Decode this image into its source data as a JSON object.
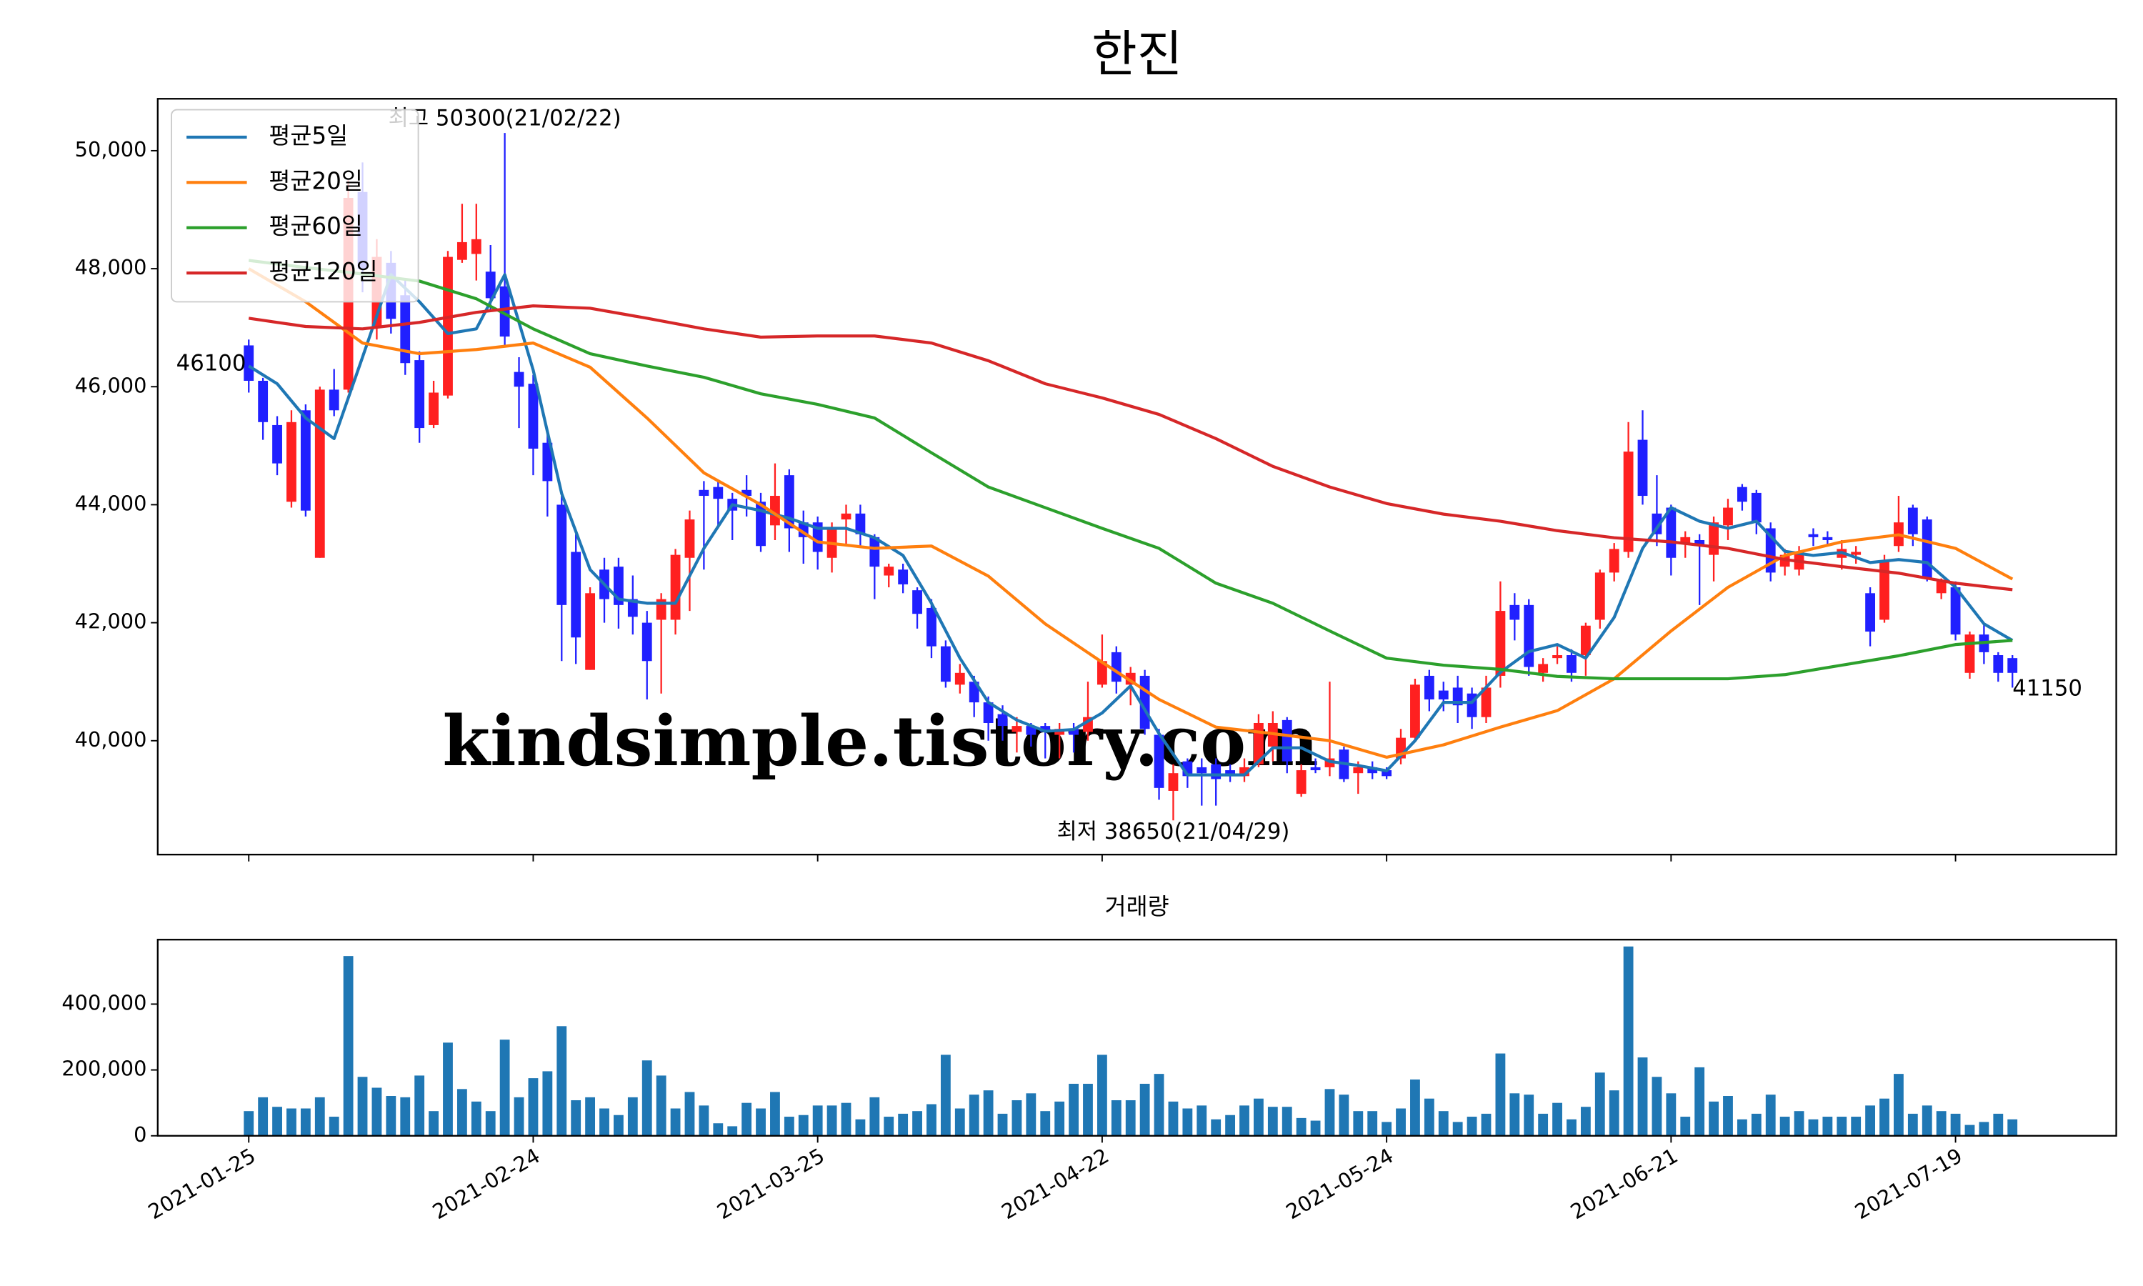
{
  "chart_data": [
    {
      "type": "candlestick",
      "title": "한진",
      "xlim": [
        -6.4,
        131.3
      ],
      "ylim": [
        38070,
        50880
      ],
      "yticks": [
        {
          "value": 40000,
          "label": "40,000"
        },
        {
          "value": 42000,
          "label": "42,000"
        },
        {
          "value": 44000,
          "label": "44,000"
        },
        {
          "value": 46000,
          "label": "46,000"
        },
        {
          "value": 48000,
          "label": "48,000"
        },
        {
          "value": 50000,
          "label": "50,000"
        }
      ],
      "up_color": "#ff2020",
      "down_color": "#2020ff",
      "open": [
        46700,
        46100,
        45350,
        44050,
        45600,
        43100,
        45950,
        45950,
        49300,
        47000,
        48100,
        47550,
        46450,
        45350,
        45850,
        48150,
        48250,
        47950,
        47700,
        46250,
        46050,
        45050,
        44000,
        43200,
        41200,
        42900,
        42950,
        42400,
        42000,
        42050,
        42050,
        43100,
        44250,
        44300,
        44100,
        44250,
        44050,
        43650,
        44500,
        43700,
        43700,
        43100,
        43750,
        43850,
        43450,
        42800,
        42900,
        42550,
        42250,
        41600,
        40950,
        41000,
        40650,
        40450,
        40150,
        40250,
        40250,
        40100,
        40200,
        40150,
        40950,
        41500,
        40950,
        41100,
        40100,
        39150,
        39650,
        39550,
        39600,
        39500,
        39400,
        39600,
        39900,
        40350,
        39100,
        39550,
        39550,
        39850,
        39450,
        39550,
        39500,
        39700,
        40050,
        41100,
        40850,
        40900,
        40800,
        40400,
        41100,
        42300,
        42300,
        41150,
        41400,
        41450,
        41450,
        42050,
        42850,
        43200,
        45100,
        43850,
        43950,
        43350,
        43400,
        43150,
        43650,
        44300,
        44200,
        43600,
        42950,
        42900,
        43500,
        43450,
        43100,
        43150,
        42500,
        42050,
        43300,
        43950,
        43750,
        42500,
        42600,
        41150,
        41800,
        41450,
        41400
      ],
      "high": [
        46800,
        46150,
        45500,
        45600,
        45700,
        46000,
        46300,
        49500,
        49800,
        48500,
        48300,
        47800,
        46600,
        46100,
        48300,
        49100,
        49100,
        48400,
        50300,
        46500,
        46200,
        45200,
        44150,
        43500,
        42600,
        43100,
        43100,
        42800,
        42200,
        42500,
        43250,
        43900,
        44400,
        44400,
        44200,
        44500,
        44200,
        44700,
        44600,
        43900,
        43800,
        43700,
        44000,
        44000,
        43500,
        43000,
        43000,
        42600,
        42400,
        41700,
        41300,
        41100,
        40750,
        40600,
        40400,
        40300,
        40300,
        40300,
        40300,
        41000,
        41800,
        41600,
        41250,
        41200,
        40200,
        39600,
        39700,
        39700,
        39700,
        39600,
        39700,
        40450,
        40500,
        40400,
        39600,
        39700,
        41000,
        39900,
        39650,
        39650,
        39550,
        40200,
        41050,
        41200,
        41000,
        41100,
        40900,
        41100,
        42700,
        42500,
        42400,
        41400,
        41600,
        41550,
        42000,
        42900,
        43350,
        45400,
        45600,
        44500,
        44000,
        43550,
        43500,
        43800,
        44100,
        44350,
        44250,
        43700,
        43250,
        43300,
        43600,
        43550,
        43400,
        43300,
        42600,
        43150,
        44150,
        44000,
        43800,
        42750,
        42700,
        41850,
        42000,
        41500,
        41450
      ],
      "low": [
        45900,
        45100,
        44500,
        43950,
        43800,
        43100,
        45500,
        45900,
        47600,
        46800,
        46900,
        46200,
        45050,
        45300,
        45800,
        48100,
        47800,
        47300,
        46700,
        45300,
        44500,
        43800,
        41350,
        41300,
        41200,
        42000,
        41900,
        41800,
        40700,
        40800,
        41800,
        42200,
        42900,
        43600,
        43400,
        43800,
        43200,
        43400,
        43200,
        43000,
        42900,
        42850,
        43300,
        43300,
        42400,
        42600,
        42500,
        41900,
        41400,
        40900,
        40800,
        40400,
        40000,
        40000,
        39800,
        39900,
        39700,
        39700,
        39800,
        40000,
        40900,
        40800,
        40600,
        40100,
        39000,
        38650,
        39200,
        38900,
        38900,
        39300,
        39300,
        39550,
        39650,
        39450,
        39050,
        39450,
        39400,
        39300,
        39100,
        39350,
        39350,
        39600,
        40000,
        40500,
        40500,
        40300,
        40200,
        40300,
        40900,
        41700,
        41100,
        41000,
        41300,
        41000,
        41100,
        41900,
        42700,
        43100,
        44000,
        43300,
        42800,
        43100,
        42300,
        42700,
        43400,
        43900,
        43500,
        42700,
        42800,
        42800,
        43300,
        43300,
        42900,
        43000,
        41600,
        42000,
        43200,
        43300,
        42700,
        42400,
        41700,
        41050,
        41300,
        41000,
        40900
      ],
      "close": [
        46100,
        45400,
        44700,
        45400,
        43900,
        45950,
        45600,
        49200,
        48000,
        48200,
        47150,
        46400,
        45300,
        45900,
        48200,
        48450,
        48500,
        47500,
        46850,
        46000,
        44950,
        44400,
        42300,
        41750,
        42500,
        42400,
        42300,
        42100,
        41350,
        42400,
        43150,
        43750,
        44150,
        44100,
        43900,
        44150,
        43300,
        44150,
        43600,
        43450,
        43200,
        43600,
        43850,
        43500,
        42950,
        42950,
        42650,
        42150,
        41600,
        41000,
        41150,
        40650,
        40300,
        40250,
        40250,
        40100,
        40150,
        40200,
        40100,
        40400,
        41350,
        41000,
        41150,
        40200,
        39200,
        39450,
        39400,
        39450,
        39350,
        39400,
        39550,
        40300,
        40300,
        39650,
        39500,
        39500,
        39700,
        39350,
        39550,
        39450,
        39400,
        40050,
        40950,
        40700,
        40700,
        40600,
        40400,
        40900,
        42200,
        42050,
        41250,
        41300,
        41450,
        41150,
        41950,
        42850,
        43250,
        44900,
        44150,
        43500,
        43100,
        43450,
        43300,
        43700,
        43950,
        44050,
        43700,
        42850,
        43150,
        43200,
        43450,
        43400,
        43250,
        43200,
        41850,
        43050,
        43700,
        43500,
        42750,
        42700,
        41800,
        41800,
        41500,
        41150,
        41150
      ],
      "lines": [
        {
          "name": "평균5일",
          "color": "#1f77b4",
          "x": [
            0,
            2,
            4,
            6,
            8,
            10,
            12,
            14,
            16,
            18,
            20,
            22,
            24,
            26,
            28,
            30,
            32,
            34,
            36,
            38,
            40,
            42,
            44,
            46,
            48,
            50,
            52,
            54,
            56,
            58,
            60,
            62,
            64,
            66,
            68,
            70,
            72,
            74,
            76,
            78,
            80,
            82,
            84,
            86,
            88,
            90,
            92,
            94,
            96,
            98,
            100,
            102,
            104,
            106,
            108,
            110,
            112,
            114,
            116,
            118,
            120,
            122,
            124
          ],
          "values": [
            46350,
            46050,
            45470,
            45120,
            46500,
            47900,
            47440,
            46900,
            46980,
            47900,
            46280,
            44190,
            42900,
            42400,
            42330,
            42330,
            43260,
            44000,
            43900,
            43770,
            43600,
            43600,
            43440,
            43140,
            42330,
            41400,
            40650,
            40350,
            40160,
            40190,
            40470,
            40930,
            40120,
            39420,
            39420,
            39420,
            39880,
            39880,
            39650,
            39580,
            39490,
            40000,
            40650,
            40650,
            41160,
            41510,
            41630,
            41400,
            42090,
            43260,
            43950,
            43720,
            43600,
            43720,
            43210,
            43140,
            43190,
            43020,
            43070,
            43020,
            42600,
            41980,
            41700
          ]
        },
        {
          "name": "평균20일",
          "color": "#ff7f0e",
          "x": [
            0,
            4,
            8,
            12,
            16,
            20,
            24,
            28,
            32,
            36,
            40,
            44,
            48,
            52,
            56,
            60,
            64,
            68,
            72,
            76,
            80,
            84,
            88,
            92,
            96,
            100,
            104,
            108,
            112,
            116,
            120,
            124
          ],
          "values": [
            48000,
            47440,
            46740,
            46560,
            46630,
            46740,
            46330,
            45470,
            44540,
            44000,
            43370,
            43260,
            43300,
            42790,
            41980,
            41330,
            40700,
            40230,
            40120,
            40000,
            39720,
            39930,
            40230,
            40510,
            41050,
            41860,
            42600,
            43140,
            43370,
            43490,
            43260,
            42740
          ]
        },
        {
          "name": "평균60일",
          "color": "#2ca02c",
          "x": [
            0,
            4,
            8,
            12,
            16,
            20,
            24,
            28,
            32,
            36,
            40,
            44,
            48,
            52,
            56,
            60,
            64,
            68,
            72,
            76,
            80,
            84,
            88,
            92,
            96,
            100,
            104,
            108,
            112,
            116,
            120,
            124
          ],
          "values": [
            48140,
            48020,
            47910,
            47790,
            47490,
            46980,
            46560,
            46350,
            46160,
            45880,
            45700,
            45470,
            44880,
            44300,
            43950,
            43600,
            43260,
            42670,
            42330,
            41860,
            41400,
            41280,
            41210,
            41090,
            41050,
            41050,
            41050,
            41120,
            41280,
            41440,
            41630,
            41700
          ]
        },
        {
          "name": "평균120일",
          "color": "#d62728",
          "x": [
            0,
            4,
            8,
            12,
            16,
            20,
            24,
            28,
            32,
            36,
            40,
            44,
            48,
            52,
            56,
            60,
            64,
            68,
            72,
            76,
            80,
            84,
            88,
            92,
            96,
            100,
            104,
            108,
            112,
            116,
            120,
            124
          ],
          "values": [
            47160,
            47020,
            46980,
            47090,
            47260,
            47370,
            47330,
            47160,
            46980,
            46840,
            46860,
            46860,
            46740,
            46440,
            46050,
            45810,
            45530,
            45120,
            44650,
            44300,
            44020,
            43840,
            43720,
            43560,
            43440,
            43370,
            43260,
            43070,
            42950,
            42840,
            42670,
            42560
          ]
        }
      ],
      "legend": "upper left",
      "annotations": [
        {
          "text": "최고 50300(21/02/22)",
          "x": 18,
          "y": 50300,
          "color": "#ff0000"
        },
        {
          "text": "최저 38650(21/04/29)",
          "x": 65,
          "y": 38650,
          "color": "#0000ff"
        },
        {
          "text": "46100",
          "x": 0,
          "y": 46100,
          "color": "#000000"
        },
        {
          "text": "41150",
          "x": 124,
          "y": 41150,
          "color": "#000000"
        }
      ],
      "watermark": {
        "text": "kindsimple.tistory.com",
        "color": "#e0a0ec"
      }
    },
    {
      "type": "bar",
      "title": "거래량",
      "color": "#1f77b4",
      "xlim": [
        -6.4,
        131.3
      ],
      "ylim": [
        0,
        595800
      ],
      "yticks": [
        0,
        {
          "value": 200000,
          "label": "200,000"
        },
        {
          "value": 400000,
          "label": "400,000"
        }
      ],
      "categories": [
        "2021-01-25",
        null,
        null,
        null,
        null,
        null,
        null,
        null,
        null,
        null,
        null,
        null,
        null,
        null,
        null,
        null,
        null,
        null,
        null,
        null,
        "2021-02-24",
        null,
        null,
        null,
        null,
        null,
        null,
        null,
        null,
        null,
        null,
        null,
        null,
        null,
        null,
        null,
        null,
        null,
        null,
        null,
        "2021-03-25",
        null,
        null,
        null,
        null,
        null,
        null,
        null,
        null,
        null,
        null,
        null,
        null,
        null,
        null,
        null,
        null,
        null,
        null,
        null,
        "2021-04-22",
        null,
        null,
        null,
        null,
        null,
        null,
        null,
        null,
        null,
        null,
        null,
        null,
        null,
        null,
        null,
        null,
        null,
        null,
        null,
        "2021-05-24",
        null,
        null,
        null,
        null,
        null,
        null,
        null,
        null,
        null,
        null,
        null,
        null,
        null,
        null,
        null,
        null,
        null,
        null,
        null,
        "2021-06-21",
        null,
        null,
        null,
        null,
        null,
        null,
        null,
        null,
        null,
        null,
        null,
        null,
        null,
        null,
        null,
        null,
        null,
        null,
        null,
        "2021-07-19",
        null,
        null,
        null,
        null
      ],
      "values": [
        75000,
        117000,
        88000,
        83000,
        83000,
        117000,
        58000,
        546000,
        179000,
        146000,
        121000,
        117000,
        183000,
        75000,
        283000,
        142000,
        104000,
        75000,
        292000,
        117000,
        175000,
        196000,
        333000,
        108000,
        117000,
        83000,
        63000,
        117000,
        229000,
        183000,
        83000,
        133000,
        92000,
        38000,
        29000,
        100000,
        83000,
        133000,
        58000,
        63000,
        92000,
        92000,
        100000,
        50000,
        117000,
        58000,
        67000,
        75000,
        96000,
        246000,
        83000,
        125000,
        138000,
        67000,
        108000,
        129000,
        75000,
        104000,
        158000,
        158000,
        246000,
        108000,
        108000,
        158000,
        188000,
        104000,
        83000,
        92000,
        50000,
        63000,
        92000,
        113000,
        88000,
        88000,
        54000,
        46000,
        142000,
        125000,
        75000,
        75000,
        42000,
        83000,
        171000,
        113000,
        75000,
        42000,
        58000,
        67000,
        250000,
        129000,
        125000,
        67000,
        100000,
        50000,
        88000,
        192000,
        138000,
        575000,
        238000,
        179000,
        129000,
        58000,
        208000,
        104000,
        121000,
        50000,
        67000,
        125000,
        58000,
        75000,
        50000,
        58000,
        58000,
        58000,
        92000,
        113000,
        188000,
        67000,
        92000,
        75000,
        67000,
        33000,
        42000,
        67000,
        50000
      ]
    }
  ]
}
